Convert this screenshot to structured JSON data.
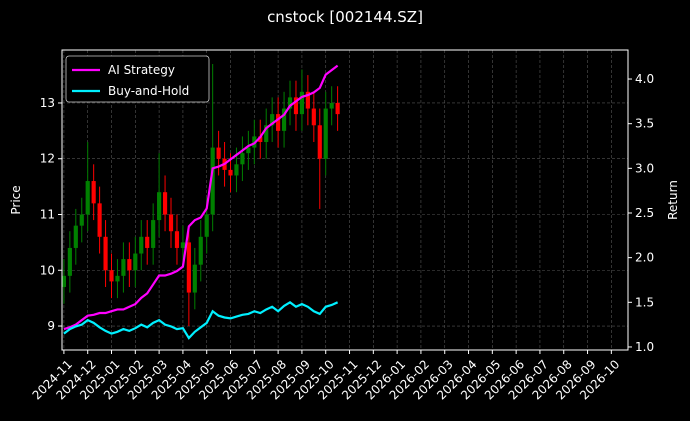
{
  "chart_data": {
    "type": "candlestick",
    "title": "cnstock [002144.SZ]",
    "ylabel": "Price",
    "y2label": "Return",
    "x": [
      0,
      0.25,
      0.5,
      0.75,
      1,
      1.25,
      1.5,
      1.75,
      2,
      2.25,
      2.5,
      2.75,
      3,
      3.25,
      3.5,
      3.75,
      4,
      4.25,
      4.5,
      4.75,
      5,
      5.25,
      5.5,
      5.75,
      6,
      6.25,
      6.5,
      6.75,
      7,
      7.25,
      7.5,
      7.75,
      8,
      8.25,
      8.5,
      8.75,
      9,
      9.25,
      9.5,
      9.75,
      10,
      10.25,
      10.5,
      10.75,
      11,
      11.25,
      11.5
    ],
    "open": [
      9.7,
      9.9,
      10.4,
      10.8,
      11.0,
      11.6,
      11.2,
      10.6,
      10.0,
      9.8,
      9.9,
      10.2,
      10.0,
      10.3,
      10.6,
      10.4,
      10.9,
      11.4,
      11.0,
      10.7,
      10.4,
      10.5,
      9.6,
      10.1,
      10.6,
      11.0,
      12.2,
      12.0,
      11.8,
      11.7,
      11.9,
      12.1,
      12.2,
      12.4,
      12.3,
      12.6,
      12.8,
      12.5,
      12.9,
      13.1,
      12.8,
      13.2,
      12.9,
      12.6,
      12.0,
      12.9,
      13.0
    ],
    "high": [
      10.2,
      10.7,
      11.1,
      11.3,
      12.3,
      11.9,
      11.5,
      10.9,
      10.3,
      10.2,
      10.5,
      10.5,
      10.6,
      10.9,
      10.9,
      11.2,
      12.1,
      11.7,
      11.3,
      11.0,
      10.8,
      10.8,
      10.4,
      10.9,
      11.3,
      13.7,
      12.5,
      12.3,
      12.1,
      12.2,
      12.4,
      12.5,
      12.7,
      12.7,
      12.9,
      13.1,
      13.1,
      13.2,
      13.4,
      13.4,
      13.6,
      13.5,
      13.2,
      12.9,
      13.2,
      13.3,
      13.3
    ],
    "low": [
      9.4,
      9.6,
      10.1,
      10.5,
      10.7,
      10.9,
      10.3,
      9.7,
      9.5,
      9.5,
      9.6,
      9.7,
      9.7,
      10.0,
      10.1,
      10.1,
      10.6,
      10.7,
      10.4,
      10.1,
      10.1,
      9.0,
      9.3,
      9.8,
      10.3,
      10.7,
      11.7,
      11.5,
      11.4,
      11.4,
      11.6,
      11.8,
      11.9,
      12.0,
      12.0,
      12.3,
      12.2,
      12.2,
      12.6,
      12.5,
      12.5,
      12.6,
      12.3,
      11.1,
      11.7,
      12.6,
      12.5
    ],
    "close": [
      9.9,
      10.4,
      10.8,
      11.0,
      11.6,
      11.2,
      10.6,
      10.0,
      9.8,
      9.9,
      10.2,
      10.0,
      10.3,
      10.6,
      10.4,
      10.9,
      11.4,
      11.0,
      10.7,
      10.4,
      10.5,
      9.6,
      10.1,
      10.6,
      11.0,
      12.2,
      12.0,
      11.8,
      11.7,
      11.9,
      12.1,
      12.2,
      12.4,
      12.3,
      12.6,
      12.8,
      12.5,
      12.9,
      13.1,
      12.8,
      13.2,
      12.9,
      12.6,
      12.0,
      12.9,
      13.0,
      12.8
    ],
    "up_color": "#008000",
    "down_color": "#ff0000",
    "series": [
      {
        "name": "AI Strategy",
        "color": "#ff00ff",
        "axis": "y2",
        "values": [
          1.2,
          1.22,
          1.25,
          1.3,
          1.35,
          1.36,
          1.38,
          1.38,
          1.4,
          1.42,
          1.42,
          1.45,
          1.48,
          1.55,
          1.6,
          1.7,
          1.8,
          1.8,
          1.82,
          1.85,
          1.9,
          2.35,
          2.42,
          2.45,
          2.55,
          3.0,
          3.02,
          3.05,
          3.1,
          3.15,
          3.2,
          3.25,
          3.28,
          3.35,
          3.45,
          3.5,
          3.55,
          3.6,
          3.7,
          3.75,
          3.8,
          3.82,
          3.85,
          3.9,
          4.05,
          4.1,
          4.15
        ]
      },
      {
        "name": "Buy-and-Hold",
        "color": "#00f0ff",
        "axis": "y2",
        "values": [
          1.15,
          1.2,
          1.23,
          1.25,
          1.3,
          1.27,
          1.22,
          1.18,
          1.15,
          1.17,
          1.2,
          1.18,
          1.21,
          1.25,
          1.22,
          1.27,
          1.3,
          1.25,
          1.23,
          1.2,
          1.21,
          1.1,
          1.17,
          1.22,
          1.27,
          1.4,
          1.35,
          1.33,
          1.32,
          1.34,
          1.36,
          1.37,
          1.4,
          1.38,
          1.42,
          1.45,
          1.4,
          1.46,
          1.5,
          1.45,
          1.48,
          1.45,
          1.4,
          1.37,
          1.45,
          1.47,
          1.5
        ]
      }
    ],
    "xlim": [
      -0.08,
      23.7
    ],
    "xticks": [
      {
        "value": 0,
        "label": "2024-11"
      },
      {
        "value": 1,
        "label": "2024-12"
      },
      {
        "value": 2,
        "label": "2025-01"
      },
      {
        "value": 3,
        "label": "2025-02"
      },
      {
        "value": 4,
        "label": "2025-03"
      },
      {
        "value": 5,
        "label": "2025-04"
      },
      {
        "value": 6,
        "label": "2025-05"
      },
      {
        "value": 7,
        "label": "2025-06"
      },
      {
        "value": 8,
        "label": "2025-07"
      },
      {
        "value": 9,
        "label": "2025-08"
      },
      {
        "value": 10,
        "label": "2025-09"
      },
      {
        "value": 11,
        "label": "2025-10"
      },
      {
        "value": 12,
        "label": "2025-11"
      },
      {
        "value": 13,
        "label": "2025-12"
      },
      {
        "value": 14,
        "label": "2026-01"
      },
      {
        "value": 15,
        "label": "2026-02"
      },
      {
        "value": 16,
        "label": "2026-03"
      },
      {
        "value": 17,
        "label": "2026-04"
      },
      {
        "value": 18,
        "label": "2026-05"
      },
      {
        "value": 19,
        "label": "2026-06"
      },
      {
        "value": 20,
        "label": "2026-07"
      },
      {
        "value": 21,
        "label": "2026-08"
      },
      {
        "value": 22,
        "label": "2026-09"
      },
      {
        "value": 23,
        "label": "2026-10"
      }
    ],
    "ylim": [
      8.57,
      13.95
    ],
    "yticks": [
      9,
      10,
      11,
      12,
      13
    ],
    "y2lim": [
      0.966,
      4.325
    ],
    "y2ticks": [
      {
        "value": 1,
        "label": "1.0"
      },
      1.5,
      {
        "value": 2,
        "label": "2.0"
      },
      2.5,
      {
        "value": 3,
        "label": "3.0"
      },
      3.5,
      {
        "value": 4,
        "label": "4.0"
      }
    ],
    "grid": true,
    "legend": "upper left"
  }
}
